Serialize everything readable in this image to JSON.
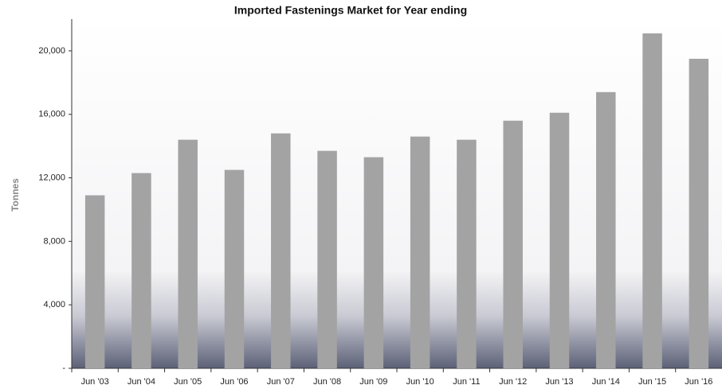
{
  "chart_data": {
    "type": "bar",
    "title": "Imported Fastenings Market for Year ending",
    "y_label": "Tonnes",
    "categories": [
      "Jun '03",
      "Jun '04",
      "Jun '05",
      "Jun '06",
      "Jun '07",
      "Jun '08",
      "Jun '09",
      "Jun '10",
      "Jun '11",
      "Jun '12",
      "Jun '13",
      "Jun '14",
      "Jun '15",
      "Jun '16"
    ],
    "values": [
      10900,
      12300,
      14400,
      12500,
      14800,
      13700,
      13300,
      14600,
      14400,
      15600,
      16100,
      17400,
      21100,
      19500
    ],
    "color": "#a3a3a3",
    "ylim": [
      0,
      22000
    ],
    "yticks": [
      {
        "value": 0,
        "label": "-"
      },
      {
        "value": 4000,
        "label": "4,000"
      },
      {
        "value": 8000,
        "label": "8,000"
      },
      {
        "value": 12000,
        "label": "12,000"
      },
      {
        "value": 16000,
        "label": "16,000"
      },
      {
        "value": 20000,
        "label": "20,000"
      }
    ],
    "grid": false
  }
}
